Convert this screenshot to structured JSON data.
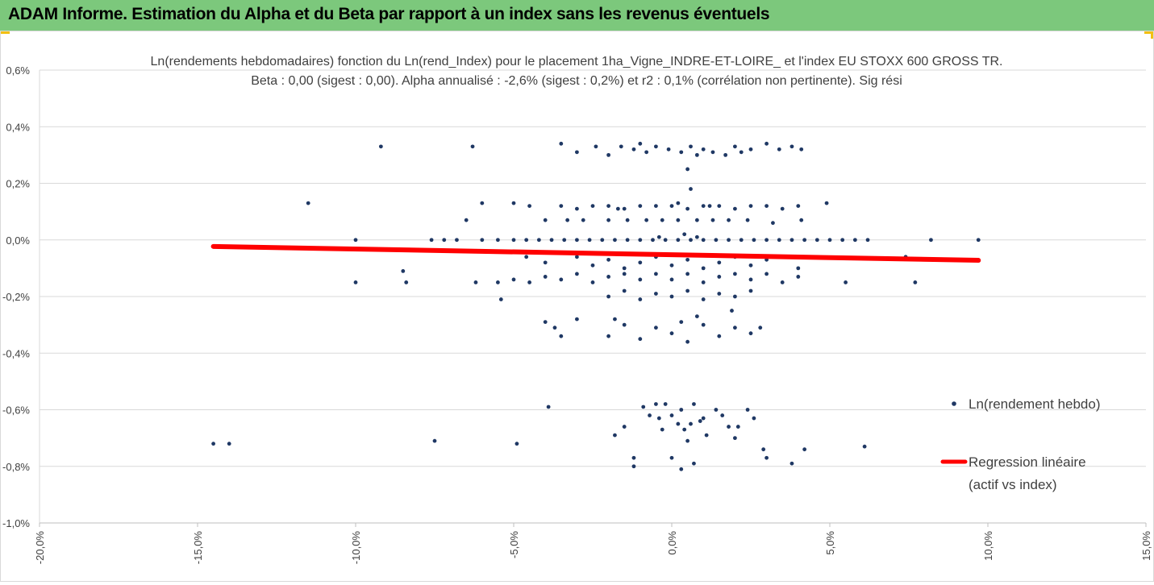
{
  "header": {
    "title": "ADAM Informe. Estimation du Alpha et du Beta par rapport à un index sans les revenus éventuels"
  },
  "colors": {
    "header_bg": "#7cc87c",
    "accent_corner": "#f2c011",
    "points": "#1f3864",
    "regression": "#ff0000"
  },
  "chart_data": {
    "type": "scatter",
    "title_line1": "Ln(rendements hebdomadaires) fonction du Ln(rend_Index) pour le placement 1ha_Vigne_INDRE-ET-LOIRE_ et l'index EU STOXX 600 GROSS TR.",
    "title_line2": "Beta : 0,00 (sigest : 0,00).  Alpha annualisé : -2,6% (sigest : 0,2%) et r2 : 0,1% (corrélation non pertinente). Sig rési",
    "xlim": [
      -0.2,
      0.15
    ],
    "ylim": [
      -0.01,
      0.006
    ],
    "x_ticks": [
      -0.2,
      -0.15,
      -0.1,
      -0.05,
      0.0,
      0.05,
      0.1,
      0.15
    ],
    "x_tick_labels": [
      "-20,0%",
      "-15,0%",
      "-10,0%",
      "-5,0%",
      "0,0%",
      "5,0%",
      "10,0%",
      "15,0%"
    ],
    "y_ticks": [
      0.006,
      0.004,
      0.002,
      0.0,
      -0.002,
      -0.004,
      -0.006,
      -0.008,
      -0.01
    ],
    "y_tick_labels": [
      "0,6%",
      "0,4%",
      "0,2%",
      "0,0%",
      "-0,2%",
      "-0,4%",
      "-0,6%",
      "-0,8%",
      "-1,0%"
    ],
    "grid": "horizontal",
    "legend_position": "right",
    "legend": [
      {
        "name": "Ln(rendement hebdo)",
        "kind": "marker"
      },
      {
        "name": "Regression linéaire\n(actif vs index)",
        "kind": "line"
      }
    ],
    "series": [
      {
        "name": "Ln(rendement hebdo)",
        "points": [
          [
            -0.145,
            -0.0072
          ],
          [
            -0.14,
            -0.0072
          ],
          [
            -0.075,
            -0.0071
          ],
          [
            -0.049,
            -0.0072
          ],
          [
            -0.039,
            -0.0059
          ],
          [
            -0.018,
            -0.0069
          ],
          [
            -0.015,
            -0.0066
          ],
          [
            -0.012,
            -0.0077
          ],
          [
            -0.012,
            -0.008
          ],
          [
            -0.009,
            -0.0059
          ],
          [
            -0.005,
            -0.0058
          ],
          [
            -0.004,
            -0.0063
          ],
          [
            -0.002,
            -0.0058
          ],
          [
            0.0,
            -0.0062
          ],
          [
            0.002,
            -0.0065
          ],
          [
            0.004,
            -0.0067
          ],
          [
            0.005,
            -0.0071
          ],
          [
            0.007,
            -0.0058
          ],
          [
            0.009,
            -0.0064
          ],
          [
            0.011,
            -0.0069
          ],
          [
            0.014,
            -0.006
          ],
          [
            0.016,
            -0.0062
          ],
          [
            0.018,
            -0.0066
          ],
          [
            0.02,
            -0.007
          ],
          [
            0.024,
            -0.006
          ],
          [
            0.026,
            -0.0063
          ],
          [
            0.029,
            -0.0074
          ],
          [
            0.03,
            -0.0077
          ],
          [
            0.038,
            -0.0079
          ],
          [
            0.042,
            -0.0074
          ],
          [
            0.061,
            -0.0073
          ],
          [
            0.003,
            -0.0081
          ],
          [
            0.007,
            -0.0079
          ],
          [
            0.0,
            -0.0077
          ],
          [
            -0.003,
            -0.0067
          ],
          [
            0.01,
            -0.0063
          ],
          [
            0.006,
            -0.0065
          ],
          [
            -0.007,
            -0.0062
          ],
          [
            0.021,
            -0.0066
          ],
          [
            0.003,
            -0.006
          ],
          [
            -0.092,
            0.0033
          ],
          [
            -0.063,
            0.0033
          ],
          [
            -0.035,
            0.0034
          ],
          [
            -0.03,
            0.0031
          ],
          [
            -0.02,
            0.003
          ],
          [
            -0.016,
            0.0033
          ],
          [
            -0.012,
            0.0032
          ],
          [
            -0.008,
            0.0031
          ],
          [
            -0.005,
            0.0033
          ],
          [
            -0.001,
            0.0032
          ],
          [
            0.003,
            0.0031
          ],
          [
            0.006,
            0.0033
          ],
          [
            0.01,
            0.0032
          ],
          [
            0.013,
            0.0031
          ],
          [
            0.017,
            0.003
          ],
          [
            0.02,
            0.0033
          ],
          [
            0.025,
            0.0032
          ],
          [
            0.03,
            0.0034
          ],
          [
            0.034,
            0.0032
          ],
          [
            0.038,
            0.0033
          ],
          [
            0.041,
            0.0032
          ],
          [
            -0.024,
            0.0033
          ],
          [
            -0.01,
            0.0034
          ],
          [
            0.008,
            0.003
          ],
          [
            0.022,
            0.0031
          ],
          [
            0.005,
            0.0025
          ],
          [
            0.006,
            0.0018
          ],
          [
            -0.115,
            0.0013
          ],
          [
            -0.06,
            0.0013
          ],
          [
            -0.05,
            0.0013
          ],
          [
            -0.045,
            0.0012
          ],
          [
            -0.035,
            0.0012
          ],
          [
            -0.03,
            0.0011
          ],
          [
            -0.025,
            0.0012
          ],
          [
            -0.02,
            0.0012
          ],
          [
            -0.015,
            0.0011
          ],
          [
            -0.01,
            0.0012
          ],
          [
            -0.005,
            0.0012
          ],
          [
            0.0,
            0.0012
          ],
          [
            0.005,
            0.0011
          ],
          [
            0.01,
            0.0012
          ],
          [
            0.015,
            0.0012
          ],
          [
            0.02,
            0.0011
          ],
          [
            0.025,
            0.0012
          ],
          [
            0.03,
            0.0012
          ],
          [
            0.035,
            0.0011
          ],
          [
            0.04,
            0.0012
          ],
          [
            0.049,
            0.0013
          ],
          [
            -0.017,
            0.0011
          ],
          [
            0.002,
            0.0013
          ],
          [
            0.012,
            0.0012
          ],
          [
            -0.065,
            0.0007
          ],
          [
            -0.04,
            0.0007
          ],
          [
            -0.033,
            0.0007
          ],
          [
            -0.028,
            0.0007
          ],
          [
            -0.02,
            0.0007
          ],
          [
            -0.014,
            0.0007
          ],
          [
            -0.008,
            0.0007
          ],
          [
            -0.003,
            0.0007
          ],
          [
            0.002,
            0.0007
          ],
          [
            0.008,
            0.0007
          ],
          [
            0.013,
            0.0007
          ],
          [
            0.018,
            0.0007
          ],
          [
            0.024,
            0.0007
          ],
          [
            0.032,
            0.0006
          ],
          [
            0.041,
            0.0007
          ],
          [
            -0.1,
            0.0
          ],
          [
            -0.076,
            0.0
          ],
          [
            -0.072,
            0.0
          ],
          [
            -0.068,
            0.0
          ],
          [
            -0.06,
            0.0
          ],
          [
            -0.055,
            0.0
          ],
          [
            -0.05,
            0.0
          ],
          [
            -0.046,
            0.0
          ],
          [
            -0.042,
            0.0
          ],
          [
            -0.038,
            0.0
          ],
          [
            -0.034,
            0.0
          ],
          [
            -0.03,
            0.0
          ],
          [
            -0.026,
            0.0
          ],
          [
            -0.022,
            0.0
          ],
          [
            -0.018,
            0.0
          ],
          [
            -0.014,
            0.0
          ],
          [
            -0.01,
            0.0
          ],
          [
            -0.006,
            0.0
          ],
          [
            -0.002,
            0.0
          ],
          [
            0.002,
            0.0
          ],
          [
            0.006,
            0.0
          ],
          [
            0.01,
            0.0
          ],
          [
            0.014,
            0.0
          ],
          [
            0.018,
            0.0
          ],
          [
            0.022,
            0.0
          ],
          [
            0.026,
            0.0
          ],
          [
            0.03,
            0.0
          ],
          [
            0.034,
            0.0
          ],
          [
            0.038,
            0.0
          ],
          [
            0.042,
            0.0
          ],
          [
            0.046,
            0.0
          ],
          [
            0.05,
            0.0
          ],
          [
            0.054,
            0.0
          ],
          [
            0.058,
            0.0
          ],
          [
            0.062,
            0.0
          ],
          [
            0.082,
            0.0
          ],
          [
            0.097,
            0.0
          ],
          [
            0.004,
            0.0002
          ],
          [
            0.008,
            0.0001
          ],
          [
            -0.004,
            0.0001
          ],
          [
            -0.046,
            -0.0006
          ],
          [
            -0.04,
            -0.0008
          ],
          [
            -0.03,
            -0.0006
          ],
          [
            -0.025,
            -0.0009
          ],
          [
            -0.02,
            -0.0007
          ],
          [
            -0.015,
            -0.001
          ],
          [
            -0.01,
            -0.0008
          ],
          [
            -0.005,
            -0.0006
          ],
          [
            0.0,
            -0.0009
          ],
          [
            0.005,
            -0.0007
          ],
          [
            0.01,
            -0.001
          ],
          [
            0.015,
            -0.0008
          ],
          [
            0.02,
            -0.0006
          ],
          [
            0.025,
            -0.0009
          ],
          [
            0.03,
            -0.0007
          ],
          [
            0.04,
            -0.001
          ],
          [
            0.074,
            -0.0006
          ],
          [
            -0.1,
            -0.0015
          ],
          [
            -0.085,
            -0.0011
          ],
          [
            -0.084,
            -0.0015
          ],
          [
            -0.062,
            -0.0015
          ],
          [
            -0.055,
            -0.0015
          ],
          [
            -0.05,
            -0.0014
          ],
          [
            -0.045,
            -0.0015
          ],
          [
            -0.04,
            -0.0013
          ],
          [
            -0.035,
            -0.0014
          ],
          [
            -0.03,
            -0.0012
          ],
          [
            -0.025,
            -0.0015
          ],
          [
            -0.02,
            -0.0013
          ],
          [
            -0.015,
            -0.0012
          ],
          [
            -0.01,
            -0.0014
          ],
          [
            -0.005,
            -0.0012
          ],
          [
            0.0,
            -0.0014
          ],
          [
            0.005,
            -0.0012
          ],
          [
            0.01,
            -0.0015
          ],
          [
            0.015,
            -0.0013
          ],
          [
            0.02,
            -0.0012
          ],
          [
            0.025,
            -0.0014
          ],
          [
            0.03,
            -0.0012
          ],
          [
            0.035,
            -0.0015
          ],
          [
            0.04,
            -0.0013
          ],
          [
            0.055,
            -0.0015
          ],
          [
            0.077,
            -0.0015
          ],
          [
            -0.054,
            -0.0021
          ],
          [
            -0.02,
            -0.002
          ],
          [
            -0.015,
            -0.0018
          ],
          [
            -0.01,
            -0.0021
          ],
          [
            -0.005,
            -0.0019
          ],
          [
            0.0,
            -0.002
          ],
          [
            0.005,
            -0.0018
          ],
          [
            0.01,
            -0.0021
          ],
          [
            0.015,
            -0.0019
          ],
          [
            0.02,
            -0.002
          ],
          [
            0.025,
            -0.0018
          ],
          [
            -0.04,
            -0.0029
          ],
          [
            -0.037,
            -0.0031
          ],
          [
            -0.035,
            -0.0034
          ],
          [
            -0.03,
            -0.0028
          ],
          [
            -0.02,
            -0.0034
          ],
          [
            -0.015,
            -0.003
          ],
          [
            -0.01,
            -0.0035
          ],
          [
            -0.005,
            -0.0031
          ],
          [
            0.0,
            -0.0033
          ],
          [
            0.005,
            -0.0036
          ],
          [
            0.01,
            -0.003
          ],
          [
            0.015,
            -0.0034
          ],
          [
            0.02,
            -0.0031
          ],
          [
            0.025,
            -0.0033
          ],
          [
            0.028,
            -0.0031
          ],
          [
            -0.018,
            -0.0028
          ],
          [
            0.003,
            -0.0029
          ],
          [
            0.019,
            -0.0025
          ],
          [
            0.008,
            -0.0027
          ]
        ]
      },
      {
        "name": "Regression linéaire\n(actif vs index)",
        "points": [
          [
            -0.145,
            -0.00023
          ],
          [
            0.097,
            -0.00072
          ]
        ]
      }
    ]
  }
}
